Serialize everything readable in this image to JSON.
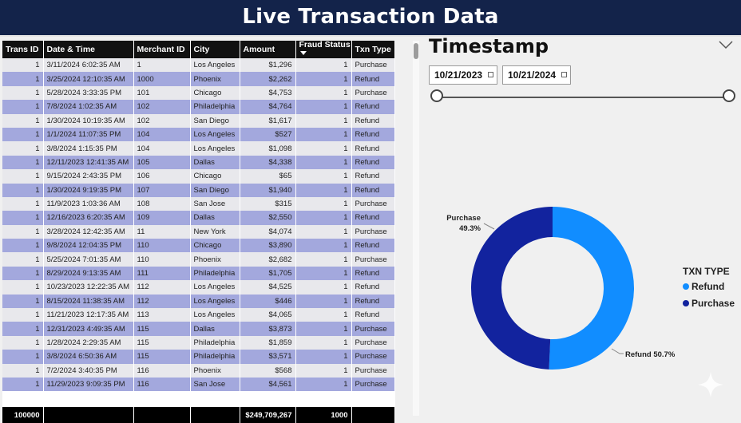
{
  "header": {
    "title": "Live Transaction Data"
  },
  "table": {
    "columns": [
      "Trans ID",
      "Date & Time",
      "Merchant ID",
      "City",
      "Amount",
      "Fraud Status",
      "Txn Type"
    ],
    "rows": [
      [
        "1",
        "3/11/2024 6:02:35 AM",
        "1",
        "Los Angeles",
        "$1,296",
        "1",
        "Purchase"
      ],
      [
        "1",
        "3/25/2024 12:10:35 AM",
        "1000",
        "Phoenix",
        "$2,262",
        "1",
        "Refund"
      ],
      [
        "1",
        "5/28/2024 3:33:35 PM",
        "101",
        "Chicago",
        "$4,753",
        "1",
        "Purchase"
      ],
      [
        "1",
        "7/8/2024 1:02:35 AM",
        "102",
        "Philadelphia",
        "$4,764",
        "1",
        "Refund"
      ],
      [
        "1",
        "1/30/2024 10:19:35 AM",
        "102",
        "San Diego",
        "$1,617",
        "1",
        "Refund"
      ],
      [
        "1",
        "1/1/2024 11:07:35 PM",
        "104",
        "Los Angeles",
        "$527",
        "1",
        "Refund"
      ],
      [
        "1",
        "3/8/2024 1:15:35 PM",
        "104",
        "Los Angeles",
        "$1,098",
        "1",
        "Refund"
      ],
      [
        "1",
        "12/11/2023 12:41:35 AM",
        "105",
        "Dallas",
        "$4,338",
        "1",
        "Refund"
      ],
      [
        "1",
        "9/15/2024 2:43:35 PM",
        "106",
        "Chicago",
        "$65",
        "1",
        "Refund"
      ],
      [
        "1",
        "1/30/2024 9:19:35 PM",
        "107",
        "San Diego",
        "$1,940",
        "1",
        "Refund"
      ],
      [
        "1",
        "11/9/2023 1:03:36 AM",
        "108",
        "San Jose",
        "$315",
        "1",
        "Purchase"
      ],
      [
        "1",
        "12/16/2023 6:20:35 AM",
        "109",
        "Dallas",
        "$2,550",
        "1",
        "Refund"
      ],
      [
        "1",
        "3/28/2024 12:42:35 AM",
        "11",
        "New York",
        "$4,074",
        "1",
        "Purchase"
      ],
      [
        "1",
        "9/8/2024 12:04:35 PM",
        "110",
        "Chicago",
        "$3,890",
        "1",
        "Refund"
      ],
      [
        "1",
        "5/25/2024 7:01:35 AM",
        "110",
        "Phoenix",
        "$2,682",
        "1",
        "Purchase"
      ],
      [
        "1",
        "8/29/2024 9:13:35 AM",
        "111",
        "Philadelphia",
        "$1,705",
        "1",
        "Refund"
      ],
      [
        "1",
        "10/23/2023 12:22:35 AM",
        "112",
        "Los Angeles",
        "$4,525",
        "1",
        "Refund"
      ],
      [
        "1",
        "8/15/2024 11:38:35 AM",
        "112",
        "Los Angeles",
        "$446",
        "1",
        "Refund"
      ],
      [
        "1",
        "11/21/2023 12:17:35 AM",
        "113",
        "Los Angeles",
        "$4,065",
        "1",
        "Refund"
      ],
      [
        "1",
        "12/31/2023 4:49:35 AM",
        "115",
        "Dallas",
        "$3,873",
        "1",
        "Purchase"
      ],
      [
        "1",
        "1/28/2024 2:29:35 AM",
        "115",
        "Philadelphia",
        "$1,859",
        "1",
        "Purchase"
      ],
      [
        "1",
        "3/8/2024 6:50:36 AM",
        "115",
        "Philadelphia",
        "$3,571",
        "1",
        "Purchase"
      ],
      [
        "1",
        "7/2/2024 3:40:35 PM",
        "116",
        "Phoenix",
        "$568",
        "1",
        "Purchase"
      ],
      [
        "1",
        "11/29/2023 9:09:35 PM",
        "116",
        "San Jose",
        "$4,561",
        "1",
        "Purchase"
      ]
    ],
    "totals": [
      "100000",
      "",
      "",
      "",
      "$249,709,267",
      "1000",
      ""
    ]
  },
  "slicer": {
    "title": "Timestamp",
    "start_date": "10/21/2023",
    "end_date": "10/21/2024",
    "chevron_icon": "chevron-down-icon",
    "calendar_icon": "calendar-icon"
  },
  "chart_data": {
    "type": "pie",
    "donut": true,
    "labels": [
      "Refund",
      "Purchase"
    ],
    "values": [
      50.7,
      49.3
    ],
    "colors": [
      "#118dff",
      "#12239e"
    ],
    "data_labels": {
      "purchase_name": "Purchase",
      "purchase_pct": "49.3%",
      "refund": "Refund 50.7%"
    },
    "legend": {
      "title": "TXN TYPE",
      "position": "right",
      "items": [
        "Refund",
        "Purchase"
      ]
    }
  }
}
